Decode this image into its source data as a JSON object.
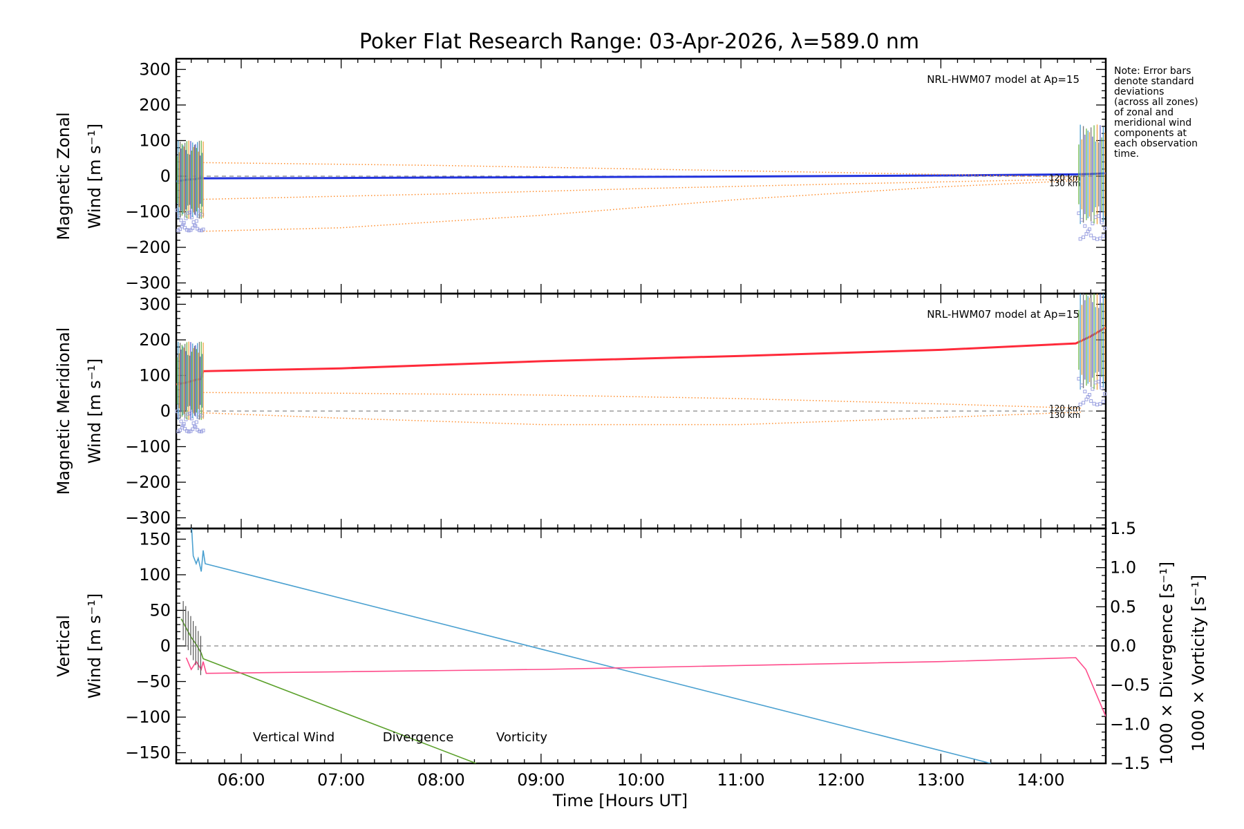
{
  "chart_data": [
    {
      "id": "zonal",
      "type": "line",
      "title": "Poker Flat Research Range: 03-Apr-2026, λ=589.0 nm",
      "ylabel_line1": "Magnetic Zonal",
      "ylabel_line2": "Wind [m s⁻¹]",
      "xlim": [
        5.35,
        14.65
      ],
      "ylim": [
        -330,
        330
      ],
      "yticks": [
        300,
        200,
        100,
        0,
        -100,
        -200,
        -300
      ],
      "ytick_labels": [
        "300",
        "200",
        "100",
        "0",
        "−100",
        "−200",
        "−300"
      ],
      "model_label": "NRL-HWM07 model at Ap=15",
      "series": [
        {
          "name": "Zonal wind",
          "color": "#2233dd",
          "x": [
            5.35,
            5.45,
            5.55,
            5.6,
            5.62,
            7.0,
            9.0,
            11.0,
            13.0,
            14.35,
            14.5,
            14.65
          ],
          "y": [
            -15,
            -10,
            -8,
            -5,
            -6,
            -5,
            -3,
            -1,
            2,
            5,
            6,
            8
          ]
        },
        {
          "name": "Model 120 km upper",
          "color": "#ff8c2a",
          "dotted": true,
          "x": [
            5.62,
            8.0,
            10.0,
            12.0,
            14.4
          ],
          "y": [
            38,
            30,
            20,
            10,
            -3
          ]
        },
        {
          "name": "Model 120 km lower",
          "color": "#ff8c2a",
          "dotted": true,
          "x": [
            5.62,
            8.0,
            10.0,
            12.0,
            14.4
          ],
          "y": [
            -65,
            -50,
            -35,
            -22,
            -8
          ]
        },
        {
          "name": "Model 130 km lower",
          "color": "#ff8c2a",
          "dotted": true,
          "x": [
            5.62,
            7.0,
            9.0,
            11.0,
            13.0,
            14.4
          ],
          "y": [
            -155,
            -145,
            -110,
            -65,
            -30,
            -12
          ]
        }
      ],
      "altitude_labels": [
        "120 km",
        "130 km"
      ]
    },
    {
      "id": "meridional",
      "type": "line",
      "ylabel_line1": "Magnetic Meridional",
      "ylabel_line2": "Wind [m s⁻¹]",
      "xlim": [
        5.35,
        14.65
      ],
      "ylim": [
        -330,
        330
      ],
      "yticks": [
        300,
        200,
        100,
        0,
        -100,
        -200,
        -300
      ],
      "ytick_labels": [
        "300",
        "200",
        "100",
        "0",
        "−100",
        "−200",
        "−300"
      ],
      "model_label": "NRL-HWM07 model at Ap=15",
      "series": [
        {
          "name": "Meridional wind",
          "color": "#ff2a3a",
          "x": [
            5.35,
            5.45,
            5.55,
            5.6,
            5.62,
            7.0,
            9.0,
            11.0,
            13.0,
            14.35,
            14.5,
            14.65
          ],
          "y": [
            75,
            80,
            88,
            90,
            112,
            120,
            140,
            155,
            172,
            190,
            210,
            235
          ]
        },
        {
          "name": "Model 120 km upper",
          "color": "#ff8c2a",
          "dotted": true,
          "x": [
            5.62,
            7.0,
            9.0,
            11.0,
            13.0,
            14.4
          ],
          "y": [
            52,
            50,
            45,
            35,
            20,
            8
          ]
        },
        {
          "name": "Model 130 km",
          "color": "#ff8c2a",
          "dotted": true,
          "x": [
            5.62,
            7.0,
            9.0,
            11.0,
            13.0,
            14.4
          ],
          "y": [
            -5,
            -20,
            -38,
            -38,
            -18,
            -3
          ]
        }
      ],
      "altitude_labels": [
        "120 km",
        "130 km"
      ]
    },
    {
      "id": "vertical",
      "type": "line",
      "ylabel_line1": "Vertical",
      "ylabel_line2": "Wind [m s⁻¹]",
      "xlabel": "Time [Hours UT]",
      "xlim": [
        5.35,
        14.65
      ],
      "xticks": [
        6,
        7,
        8,
        9,
        10,
        11,
        12,
        13,
        14
      ],
      "xtick_labels": [
        "06:00",
        "07:00",
        "08:00",
        "09:00",
        "10:00",
        "11:00",
        "12:00",
        "13:00",
        "14:00"
      ],
      "ylim": [
        -165,
        165
      ],
      "yticks": [
        150,
        100,
        50,
        0,
        -50,
        -100,
        -150
      ],
      "ytick_labels": [
        "150",
        "100",
        "50",
        "0",
        "−50",
        "−100",
        "−150"
      ],
      "y2lim": [
        -1.5,
        1.5
      ],
      "y2ticks": [
        1.5,
        1.0,
        0.5,
        0.0,
        -0.5,
        -1.0,
        -1.5
      ],
      "y2tick_labels": [
        "1.5",
        "1.0",
        "0.5",
        "0.0",
        "−0.5",
        "−1.0",
        "−1.5"
      ],
      "y2label_div": "1000 × Divergence [s⁻¹]",
      "y2label_vort": "1000 × Vorticity [s⁻¹]",
      "legend": [
        "Vertical Wind",
        "Divergence",
        "Vorticity"
      ],
      "series": [
        {
          "name": "Vertical Wind",
          "axis": "left",
          "color": "#5aa02a",
          "x": [
            5.4,
            5.45,
            5.5,
            5.55,
            5.6,
            5.62,
            8.35
          ],
          "y": [
            38,
            25,
            12,
            2,
            -10,
            -18,
            -165
          ]
        },
        {
          "name": "Divergence",
          "axis": "right",
          "color": "#4aa0d0",
          "x": [
            5.5,
            5.52,
            5.55,
            5.57,
            5.6,
            5.62,
            5.64,
            13.5
          ],
          "y": [
            1.6,
            1.15,
            1.05,
            1.12,
            0.95,
            1.22,
            1.05,
            -1.5
          ]
        },
        {
          "name": "Vorticity",
          "axis": "right",
          "color": "#ff4a8a",
          "x": [
            5.45,
            5.5,
            5.55,
            5.6,
            5.62,
            5.65,
            7.0,
            9.0,
            11.0,
            13.0,
            14.35,
            14.45,
            14.55,
            14.65
          ],
          "y": [
            -0.15,
            -0.3,
            -0.2,
            -0.3,
            -0.2,
            -0.35,
            -0.33,
            -0.3,
            -0.25,
            -0.2,
            -0.15,
            -0.3,
            -0.6,
            -0.9
          ]
        }
      ]
    }
  ],
  "note_lines": [
    "Note: Error bars",
    "denote standard",
    "deviations",
    "(across all zones)",
    "of zonal and",
    "meridional wind",
    "components at",
    "each observation",
    "time."
  ]
}
